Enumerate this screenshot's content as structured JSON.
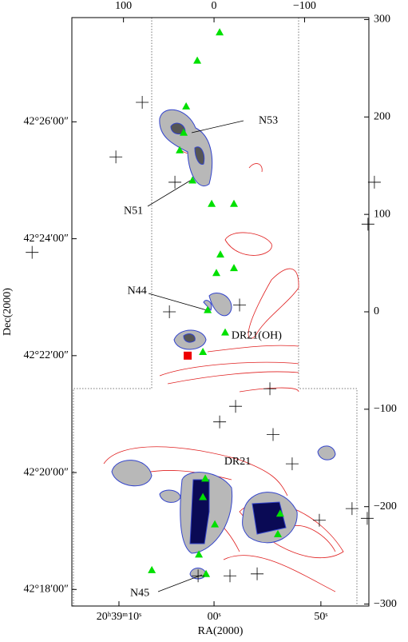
{
  "chart_data": {
    "type": "scatter",
    "xlim": [
      157,
      -171
    ],
    "ylim": [
      -302,
      302
    ],
    "xticks_top": [
      100,
      0,
      {
        "value": -100,
        "label": "−100"
      }
    ],
    "yticks_right": [
      300,
      200,
      100,
      0,
      {
        "value": -100,
        "label": "−100"
      },
      {
        "value": -200,
        "label": "−200"
      },
      {
        "value": -300,
        "label": "−300"
      }
    ],
    "yticks_left": [
      {
        "value": 195,
        "label": "42°26′00″"
      },
      {
        "value": 75,
        "label": "42°24′00″"
      },
      {
        "value": -45,
        "label": "42°22′00″"
      },
      {
        "value": -165,
        "label": "42°20′00″"
      },
      {
        "value": -285,
        "label": "42°18′00″"
      }
    ],
    "xticks_bottom": [
      {
        "value": 105,
        "label": "20ʰ39ᵐ10ˢ"
      },
      {
        "value": 0,
        "label": "00ˢ"
      },
      {
        "value": -118,
        "label": "50ˢ"
      }
    ],
    "xlabel": "RA(2000)",
    "ylabel": "Dec(2000)",
    "annotations": [
      {
        "text": "N53",
        "x": -60,
        "y": 196
      },
      {
        "text": "N51",
        "x": 89,
        "y": 103
      },
      {
        "text": "N44",
        "x": 85,
        "y": 21
      },
      {
        "text": "DR21(OH)",
        "x": -47,
        "y": -25
      },
      {
        "text": "DR21",
        "x": -26,
        "y": -154
      },
      {
        "text": "N45",
        "x": 82,
        "y": -289
      }
    ],
    "series": [
      {
        "marker": "triangle",
        "color": "#00e000",
        "x": [
          -6.2,
          18.5,
          30.8,
          33.5,
          37.9,
          23.8,
          2.6,
          -22.0,
          -7.0,
          -22.0,
          -2.6,
          7.0,
          -12.3,
          12.3,
          9.7,
          12.3,
          -0.9,
          -73,
          -70.5,
          16.7,
          68.7,
          8.8
        ],
        "y": [
          287,
          258,
          211,
          184,
          166,
          135,
          111,
          111,
          59,
          45,
          40,
          2,
          -21,
          -41,
          -171,
          -190,
          -218,
          -207,
          -228,
          -249,
          -265,
          -269
        ]
      },
      {
        "marker": "cross",
        "color": "#000000",
        "x": [
          79.3,
          108.4,
          43.2,
          -177.1,
          -170.0,
          200.9,
          49.3,
          -28.2,
          -61.7,
          -23.8,
          -6.2,
          -65.2,
          -86.3,
          -116.3,
          -152.4,
          -169.2,
          17.6,
          -17.6,
          -47.6
        ],
        "y": [
          215,
          159,
          133,
          133,
          90,
          61,
          0,
          7,
          -79,
          -97,
          -113,
          -126,
          -156,
          -214,
          -202,
          -212,
          -271,
          -271,
          -269
        ]
      },
      {
        "marker": "square",
        "color": "#ee0000",
        "x": [
          29.1
        ],
        "y": [
          -45
        ]
      }
    ]
  }
}
